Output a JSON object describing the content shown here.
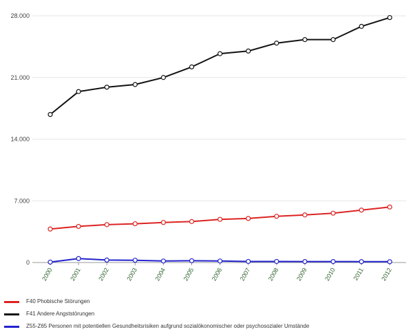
{
  "chart_data": {
    "type": "line",
    "x": [
      "2000",
      "2001",
      "2002",
      "2003",
      "2004",
      "2005",
      "2006",
      "2007",
      "2008",
      "2009",
      "2010",
      "2011",
      "2012"
    ],
    "ylim": [
      0,
      28000
    ],
    "yticks": [
      0,
      7000,
      14000,
      21000,
      28000
    ],
    "ytick_labels": [
      "0",
      "7.000",
      "14.000",
      "21.000",
      "28.000"
    ],
    "grid": true,
    "legend_position": "bottom",
    "series": [
      {
        "name": "F40 Phobische Störungen",
        "color": "#dd2222",
        "values": [
          3800,
          4100,
          4300,
          4400,
          4550,
          4650,
          4900,
          5000,
          5250,
          5400,
          5600,
          5950,
          6300
        ]
      },
      {
        "name": "F41 Andere Angststörungen",
        "color": "#111111",
        "values": [
          16800,
          19400,
          19900,
          20200,
          21000,
          22200,
          23700,
          24000,
          24900,
          25300,
          25300,
          26800,
          27800
        ]
      },
      {
        "name": "Z55-Z65 Personen mit potentiellen Gesundheitsrisiken aufgrund sozialökonomischer oder psychosozialer Umstände",
        "color": "#2222cc",
        "values": [
          50,
          450,
          280,
          260,
          170,
          200,
          170,
          120,
          120,
          110,
          110,
          100,
          90
        ]
      }
    ]
  },
  "legend": {
    "items": [
      {
        "label": "F40 Phobische Störungen",
        "color": "#dd2222"
      },
      {
        "label": "F41 Andere Angststörungen",
        "color": "#111111"
      },
      {
        "label": "Z55-Z65 Personen mit potentiellen Gesundheitsrisiken aufgrund sozialökonomischer oder psychosozialer Umstände",
        "color": "#2222cc"
      }
    ]
  }
}
